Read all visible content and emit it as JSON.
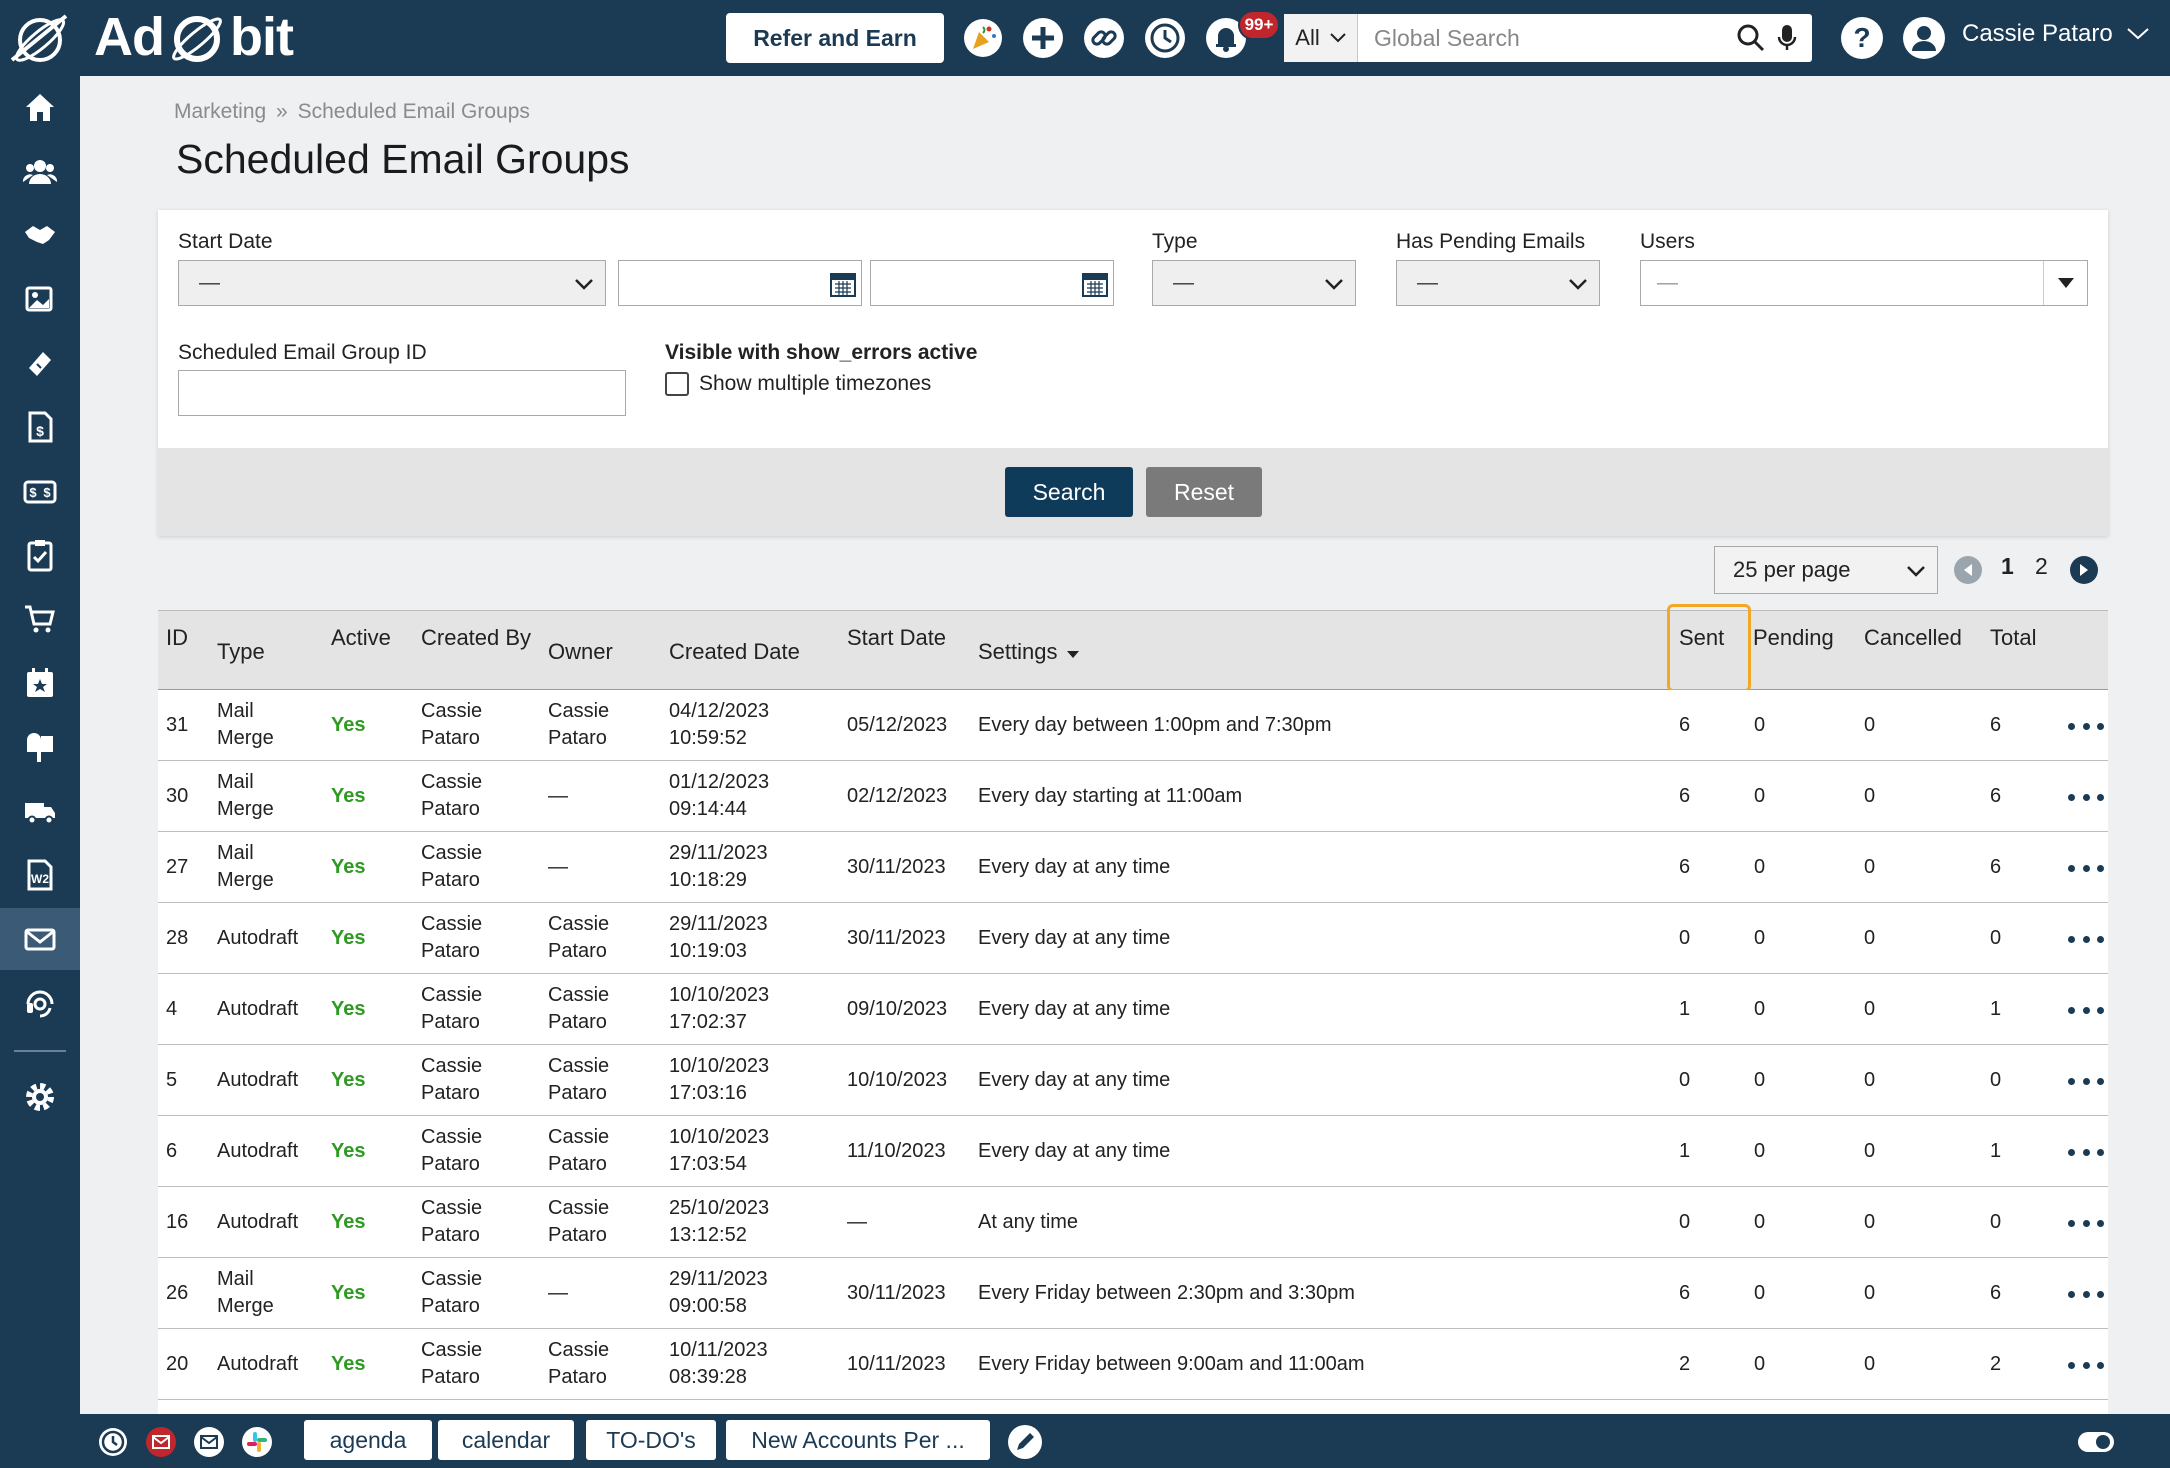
{
  "app": {
    "brand": "AdOrbit",
    "brand_pre": "Ad",
    "brand_post": "bit",
    "refer_label": "Refer and Earn",
    "notification_count": "99+",
    "search_scope": "All",
    "search_placeholder": "Global Search",
    "user_name": "Cassie Pataro"
  },
  "breadcrumb": {
    "parent": "Marketing",
    "separator": "»",
    "current": "Scheduled Email Groups"
  },
  "page_title": "Scheduled Email Groups",
  "filters": {
    "start_date_label": "Start Date",
    "start_date_value": "—",
    "type_label": "Type",
    "type_value": "—",
    "pending_label": "Has Pending Emails",
    "pending_value": "—",
    "users_label": "Users",
    "users_value": "—",
    "group_id_label": "Scheduled Email Group ID",
    "show_errors_label": "Visible with show_errors active",
    "timezones_label": "Show multiple timezones",
    "search_button": "Search",
    "reset_button": "Reset"
  },
  "pagination": {
    "per_page": "25 per page",
    "pages": [
      "1",
      "2"
    ]
  },
  "table": {
    "columns": {
      "id": "ID",
      "type": "Type",
      "active": "Active",
      "created_by": "Created By",
      "owner": "Owner",
      "created_date": "Created Date",
      "start_date": "Start Date",
      "settings": "Settings",
      "sent": "Sent",
      "pending": "Pending",
      "cancelled": "Cancelled",
      "total": "Total"
    },
    "rows": [
      {
        "id": "31",
        "type": [
          "Mail",
          "Merge"
        ],
        "active": "Yes",
        "created_by": [
          "Cassie",
          "Pataro"
        ],
        "owner": [
          "Cassie",
          "Pataro"
        ],
        "created_date": [
          "04/12/2023",
          "10:59:52"
        ],
        "start_date": "05/12/2023",
        "settings": "Every day between 1:00pm and 7:30pm",
        "sent": "6",
        "pending": "0",
        "cancelled": "0",
        "total": "6"
      },
      {
        "id": "30",
        "type": [
          "Mail",
          "Merge"
        ],
        "active": "Yes",
        "created_by": [
          "Cassie",
          "Pataro"
        ],
        "owner": [
          "—"
        ],
        "created_date": [
          "01/12/2023",
          "09:14:44"
        ],
        "start_date": "02/12/2023",
        "settings": "Every day starting at 11:00am",
        "sent": "6",
        "pending": "0",
        "cancelled": "0",
        "total": "6"
      },
      {
        "id": "27",
        "type": [
          "Mail",
          "Merge"
        ],
        "active": "Yes",
        "created_by": [
          "Cassie",
          "Pataro"
        ],
        "owner": [
          "—"
        ],
        "created_date": [
          "29/11/2023",
          "10:18:29"
        ],
        "start_date": "30/11/2023",
        "settings": "Every day at any time",
        "sent": "6",
        "pending": "0",
        "cancelled": "0",
        "total": "6"
      },
      {
        "id": "28",
        "type": [
          "Autodraft"
        ],
        "active": "Yes",
        "created_by": [
          "Cassie",
          "Pataro"
        ],
        "owner": [
          "Cassie",
          "Pataro"
        ],
        "created_date": [
          "29/11/2023",
          "10:19:03"
        ],
        "start_date": "30/11/2023",
        "settings": "Every day at any time",
        "sent": "0",
        "pending": "0",
        "cancelled": "0",
        "total": "0"
      },
      {
        "id": "4",
        "type": [
          "Autodraft"
        ],
        "active": "Yes",
        "created_by": [
          "Cassie",
          "Pataro"
        ],
        "owner": [
          "Cassie",
          "Pataro"
        ],
        "created_date": [
          "10/10/2023",
          "17:02:37"
        ],
        "start_date": "09/10/2023",
        "settings": "Every day at any time",
        "sent": "1",
        "pending": "0",
        "cancelled": "0",
        "total": "1"
      },
      {
        "id": "5",
        "type": [
          "Autodraft"
        ],
        "active": "Yes",
        "created_by": [
          "Cassie",
          "Pataro"
        ],
        "owner": [
          "Cassie",
          "Pataro"
        ],
        "created_date": [
          "10/10/2023",
          "17:03:16"
        ],
        "start_date": "10/10/2023",
        "settings": "Every day at any time",
        "sent": "0",
        "pending": "0",
        "cancelled": "0",
        "total": "0"
      },
      {
        "id": "6",
        "type": [
          "Autodraft"
        ],
        "active": "Yes",
        "created_by": [
          "Cassie",
          "Pataro"
        ],
        "owner": [
          "Cassie",
          "Pataro"
        ],
        "created_date": [
          "10/10/2023",
          "17:03:54"
        ],
        "start_date": "11/10/2023",
        "settings": "Every day at any time",
        "sent": "1",
        "pending": "0",
        "cancelled": "0",
        "total": "1"
      },
      {
        "id": "16",
        "type": [
          "Autodraft"
        ],
        "active": "Yes",
        "created_by": [
          "Cassie",
          "Pataro"
        ],
        "owner": [
          "Cassie",
          "Pataro"
        ],
        "created_date": [
          "25/10/2023",
          "13:12:52"
        ],
        "start_date": "—",
        "settings": "At any time",
        "sent": "0",
        "pending": "0",
        "cancelled": "0",
        "total": "0"
      },
      {
        "id": "26",
        "type": [
          "Mail",
          "Merge"
        ],
        "active": "Yes",
        "created_by": [
          "Cassie",
          "Pataro"
        ],
        "owner": [
          "—"
        ],
        "created_date": [
          "29/11/2023",
          "09:00:58"
        ],
        "start_date": "30/11/2023",
        "settings": "Every Friday between 2:30pm and 3:30pm",
        "sent": "6",
        "pending": "0",
        "cancelled": "0",
        "total": "6"
      },
      {
        "id": "20",
        "type": [
          "Autodraft"
        ],
        "active": "Yes",
        "created_by": [
          "Cassie",
          "Pataro"
        ],
        "owner": [
          "Cassie",
          "Pataro"
        ],
        "created_date": [
          "10/11/2023",
          "08:39:28"
        ],
        "start_date": "10/11/2023",
        "settings": "Every Friday between 9:00am and 11:00am",
        "sent": "2",
        "pending": "0",
        "cancelled": "0",
        "total": "2"
      }
    ]
  },
  "bottom_tabs": [
    "agenda",
    "calendar",
    "TO-DO's",
    "New Accounts Per ..."
  ],
  "colors": {
    "navy": "#1b3a54",
    "active_green": "#2e9a22",
    "highlight": "#f3a825",
    "search_btn": "#0f3b5a",
    "reset_btn": "#7a7a7a"
  }
}
